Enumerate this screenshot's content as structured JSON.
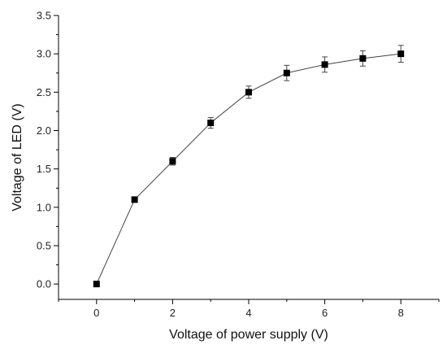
{
  "chart_data": {
    "type": "scatter",
    "title": "",
    "xlabel": "Voltage of power supply (V)",
    "ylabel": "Voltage of LED (V)",
    "xlim": [
      -1,
      9
    ],
    "ylim": [
      -0.2,
      3.5
    ],
    "xticks": [
      "0",
      "2",
      "4",
      "6",
      "8"
    ],
    "yticks": [
      "0.0",
      "0.5",
      "1.0",
      "1.5",
      "2.0",
      "2.5",
      "3.0",
      "3.5"
    ],
    "grid": false,
    "legend": "none",
    "series": [
      {
        "x": [
          0,
          1,
          2,
          3,
          4,
          5,
          6,
          7,
          8
        ],
        "y": [
          0.0,
          1.1,
          1.6,
          2.1,
          2.5,
          2.75,
          2.86,
          2.94,
          3.0
        ],
        "error": [
          0.0,
          0.0,
          0.05,
          0.07,
          0.08,
          0.1,
          0.1,
          0.1,
          0.11
        ],
        "marker": "square",
        "line": true,
        "color": "#000000"
      }
    ]
  }
}
